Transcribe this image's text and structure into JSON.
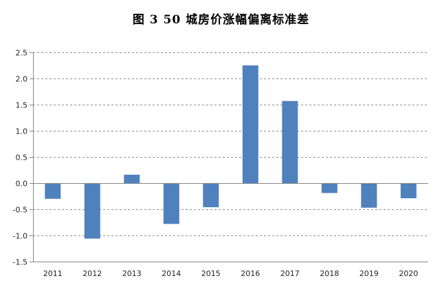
{
  "chart_data": {
    "type": "bar",
    "title": "图 3   50 城房价涨幅偏离标准差",
    "xlabel": "",
    "ylabel": "",
    "categories": [
      "2011",
      "2012",
      "2013",
      "2014",
      "2015",
      "2016",
      "2017",
      "2018",
      "2019",
      "2020"
    ],
    "values": [
      -0.3,
      -1.06,
      0.16,
      -0.78,
      -0.46,
      2.25,
      1.57,
      -0.19,
      -0.47,
      -0.29
    ],
    "ylim": [
      -1.5,
      2.5
    ],
    "yticks": [
      "-1.5",
      "-1.0",
      "-0.5",
      "0.0",
      "0.5",
      "1.0",
      "1.5",
      "2.0",
      "2.5"
    ],
    "ytick_values": [
      -1.5,
      -1.0,
      -0.5,
      0.0,
      0.5,
      1.0,
      1.5,
      2.0,
      2.5
    ],
    "grid": true,
    "legend": "none",
    "colors": {
      "bar": "#4f81bd",
      "grid": "#8c8c8c",
      "axis": "#868686"
    }
  }
}
